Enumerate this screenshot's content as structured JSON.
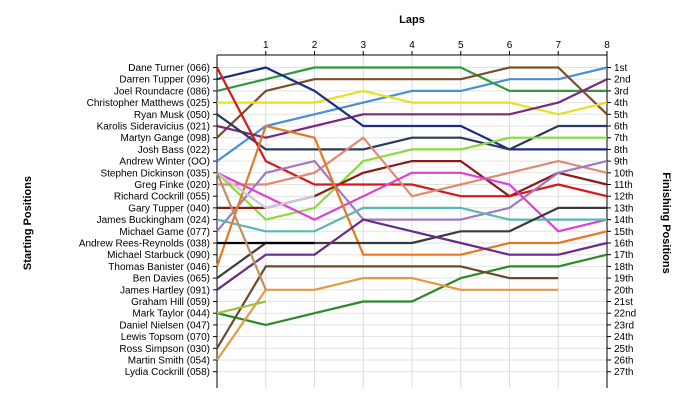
{
  "chart_data": {
    "type": "line",
    "title": "Laps",
    "ylabel_left": "Starting Positions",
    "ylabel_right": "Finishing Positions",
    "x": [
      0,
      1,
      2,
      3,
      4,
      5,
      6,
      7,
      8
    ],
    "x_tick_labels": [
      "1",
      "2",
      "3",
      "4",
      "5",
      "6",
      "7",
      "8"
    ],
    "starting_labels": [
      "Dane Turner (066)",
      "Darren Tupper (096)",
      "Joel Roundacre (086)",
      "Christopher Matthews (025)",
      "Ryan Musk (050)",
      "Karolis Sideravicius (021)",
      "Martyn Gange (098)",
      "Josh Bass (022)",
      "Andrew Winter (OO)",
      "Stephen Dickinson (035)",
      "Greg Finke (020)",
      "Richard Cockrill (055)",
      "Gary Tupper (040)",
      "James Buckingham (024)",
      "Michael Game (077)",
      "Andrew Rees-Reynolds (038)",
      "Michael Starbuck (090)",
      "Thomas Banister (046)",
      "Ben Davies (065)",
      "James Hartley (091)",
      "Graham Hill (059)",
      "Mark Taylor (044)",
      "Daniel Nielsen (047)",
      "Lewis Topsom (070)",
      "Ross Simpson (030)",
      "Martin Smith (054)",
      "Lydia Cockrill (058)"
    ],
    "finishing_labels": [
      "1st",
      "2nd",
      "3rd",
      "4th",
      "5th",
      "6th",
      "7th",
      "8th",
      "9th",
      "10th",
      "11th",
      "12th",
      "13th",
      "14th",
      "15th",
      "16th",
      "17th",
      "18th",
      "19th",
      "20th",
      "21st",
      "22nd",
      "23rd",
      "24th",
      "25th",
      "26th",
      "27th"
    ],
    "y_range": [
      1,
      27
    ],
    "series": [
      {
        "color": "#4a8fd6",
        "positions": [
          9,
          6,
          5,
          4,
          3,
          3,
          2,
          2,
          1
        ]
      },
      {
        "color": "#2e9a3a",
        "positions": [
          3,
          2,
          1,
          1,
          1,
          1,
          3,
          3,
          3
        ]
      },
      {
        "color": "#7a4e2a",
        "positions": [
          7,
          3,
          2,
          2,
          2,
          2,
          1,
          1,
          5
        ]
      },
      {
        "color": "#e6e020",
        "positions": [
          4,
          4,
          4,
          3,
          4,
          4,
          4,
          5,
          4
        ]
      },
      {
        "color": "#7a2a7a",
        "positions": [
          6,
          7,
          6,
          5,
          5,
          5,
          5,
          4,
          2
        ]
      },
      {
        "color": "#1e2a8a",
        "positions": [
          2,
          1,
          3,
          6,
          6,
          6,
          8,
          8,
          8
        ]
      },
      {
        "color": "#2a3a5a",
        "positions": [
          5,
          8,
          8,
          8,
          7,
          7,
          8,
          6,
          6
        ]
      },
      {
        "color": "#8ada3a",
        "positions": [
          10,
          14,
          13,
          9,
          8,
          8,
          7,
          7,
          7
        ]
      },
      {
        "color": "#8a1a1a",
        "positions": [
          13,
          13,
          12,
          10,
          9,
          9,
          12,
          10,
          11
        ]
      },
      {
        "color": "#d81818",
        "positions": [
          1,
          9,
          11,
          11,
          11,
          12,
          12,
          11,
          12
        ]
      },
      {
        "color": "#e08a70",
        "positions": [
          11,
          11,
          10,
          7,
          12,
          11,
          10,
          9,
          10
        ]
      },
      {
        "color": "#a07ac0",
        "positions": [
          15,
          10,
          9,
          14,
          14,
          14,
          13,
          10,
          9
        ]
      },
      {
        "color": "#e040d0",
        "positions": [
          10,
          12,
          14,
          12,
          10,
          10,
          11,
          15,
          14
        ]
      },
      {
        "color": "#5ab8b0",
        "positions": [
          14,
          15,
          15,
          13,
          13,
          13,
          14,
          14,
          14
        ]
      },
      {
        "color": "#e87820",
        "positions": [
          18,
          6,
          7,
          17,
          17,
          17,
          16,
          16,
          15
        ]
      },
      {
        "color": "#3a3a3a",
        "positions": [
          19,
          16,
          16,
          16,
          16,
          15,
          15,
          13,
          13
        ]
      },
      {
        "color": "#6a2a8a",
        "positions": [
          20,
          17,
          17,
          14,
          15,
          16,
          17,
          17,
          16
        ]
      },
      {
        "color": "#2a8a2a",
        "positions": [
          22,
          23,
          22,
          21,
          21,
          19,
          18,
          18,
          17
        ]
      },
      {
        "color": "#6a4a2a",
        "positions": [
          25,
          18,
          18,
          18,
          18,
          18,
          19,
          19,
          null
        ]
      },
      {
        "color": "#e89840",
        "positions": [
          26,
          20,
          20,
          19,
          19,
          20,
          20,
          20,
          null
        ]
      },
      {
        "color": "#000000",
        "positions": [
          16,
          16,
          16,
          null,
          null,
          null,
          null,
          null,
          null
        ]
      },
      {
        "color": "#c8c8d8",
        "positions": [
          10,
          13,
          12,
          null,
          null,
          null,
          null,
          null,
          null
        ]
      },
      {
        "color": "#a0c040",
        "positions": [
          22,
          21,
          null,
          null,
          null,
          null,
          null,
          null,
          null
        ]
      },
      {
        "color": "#c09060",
        "positions": [
          10,
          20,
          null,
          null,
          null,
          null,
          null,
          null,
          null
        ]
      }
    ]
  }
}
